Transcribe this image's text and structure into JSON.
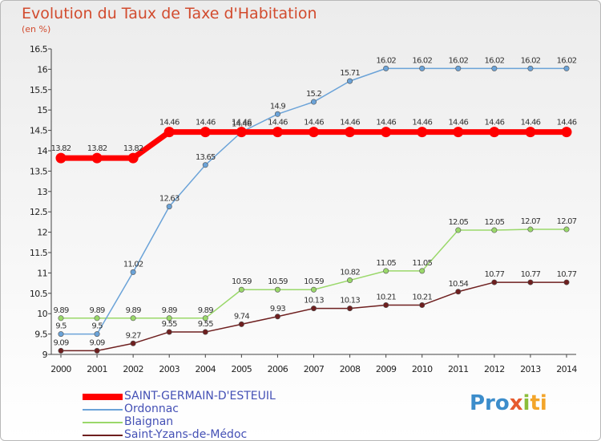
{
  "chart_data": {
    "type": "line",
    "title": "Evolution du Taux de Taxe d'Habitation",
    "subtitle": "(en %)",
    "x": [
      2000,
      2001,
      2002,
      2003,
      2004,
      2005,
      2006,
      2007,
      2008,
      2009,
      2010,
      2011,
      2012,
      2013,
      2014
    ],
    "ylim": [
      9,
      16.5
    ],
    "yticks": [
      9,
      9.5,
      10,
      10.5,
      11,
      11.5,
      12,
      12.5,
      13,
      13.5,
      14,
      14.5,
      15,
      15.5,
      16,
      16.5
    ],
    "grid": false,
    "legend_position": "bottom-left",
    "series": [
      {
        "name": "SAINT-GERMAIN-D'ESTEUIL",
        "color": "#ff0000",
        "values": [
          13.82,
          13.82,
          13.82,
          14.46,
          14.46,
          14.46,
          14.46,
          14.46,
          14.46,
          14.46,
          14.46,
          14.46,
          14.46,
          14.46,
          14.46
        ]
      },
      {
        "name": "Ordonnac",
        "color": "#6ba3d8",
        "values": [
          9.5,
          9.5,
          11.02,
          12.63,
          13.65,
          14.46,
          14.9,
          15.2,
          15.71,
          16.02,
          16.02,
          16.02,
          16.02,
          16.02,
          16.02
        ]
      },
      {
        "name": "Blaignan",
        "color": "#9ad86a",
        "values": [
          9.89,
          9.89,
          9.89,
          9.89,
          9.89,
          10.59,
          10.59,
          10.59,
          10.82,
          11.05,
          11.05,
          12.05,
          12.05,
          12.07,
          12.07
        ]
      },
      {
        "name": "Saint-Yzans-de-Médoc",
        "color": "#6e1f1f",
        "values": [
          9.09,
          9.09,
          9.27,
          9.55,
          9.55,
          9.74,
          9.93,
          10.13,
          10.13,
          10.21,
          10.21,
          10.54,
          10.77,
          10.77,
          10.77
        ]
      }
    ]
  },
  "logo": {
    "text_1": "Pro",
    "text_2": "x",
    "text_3": "i",
    "text_4": "ti"
  }
}
